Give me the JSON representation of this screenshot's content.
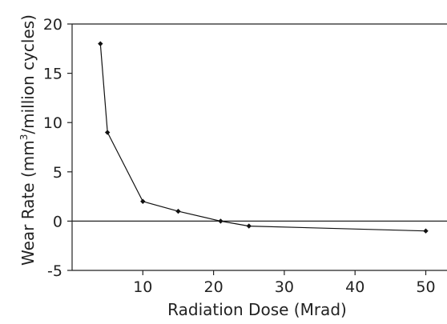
{
  "chart_data": {
    "type": "line",
    "title": "",
    "xlabel": "Radiation Dose (Mrad)",
    "ylabel_main": "Wear Rate (mm",
    "ylabel_sup": "3",
    "ylabel_tail": "/million cycles)",
    "xlim": [
      0,
      53
    ],
    "ylim": [
      -5,
      20
    ],
    "xticks": [
      10,
      20,
      30,
      40,
      50
    ],
    "yticks": [
      -5,
      0,
      5,
      10,
      15,
      20
    ],
    "grid": false,
    "legend": "none",
    "series": [
      {
        "x": [
          4,
          5,
          10,
          15,
          21,
          25,
          50
        ],
        "y": [
          18,
          9,
          2,
          1,
          0,
          -0.5,
          -1
        ]
      }
    ]
  }
}
